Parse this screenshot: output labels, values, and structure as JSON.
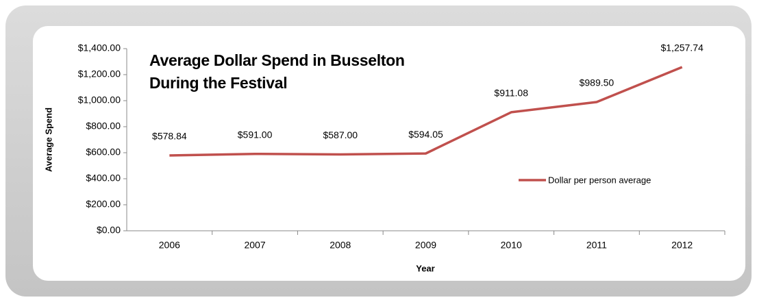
{
  "chart_data": {
    "type": "line",
    "title": "Average Dollar Spend in Busselton During the Festival",
    "x_label": "Year",
    "y_label": "Average Spend",
    "categories": [
      "2006",
      "2007",
      "2008",
      "2009",
      "2010",
      "2011",
      "2012"
    ],
    "series": [
      {
        "name": "Dollar per person average",
        "color": "#c0504d",
        "values": [
          578.84,
          591.0,
          587.0,
          594.05,
          911.08,
          989.5,
          1257.74
        ],
        "value_labels": [
          "$578.84",
          "$591.00",
          "$587.00",
          "$594.05",
          "$911.08",
          "$989.50",
          "$1,257.74"
        ]
      }
    ],
    "ylim": [
      0,
      1400
    ],
    "yticks": [
      {
        "value": 0,
        "label": "$0.00"
      },
      {
        "value": 200,
        "label": "$200.00"
      },
      {
        "value": 400,
        "label": "$400.00"
      },
      {
        "value": 600,
        "label": "$600.00"
      },
      {
        "value": 800,
        "label": "$800.00"
      },
      {
        "value": 1000,
        "label": "$1,000.00"
      },
      {
        "value": 1200,
        "label": "$1,200.00"
      },
      {
        "value": 1400,
        "label": "$1,400.00"
      }
    ],
    "grid": false,
    "legend": "right"
  }
}
